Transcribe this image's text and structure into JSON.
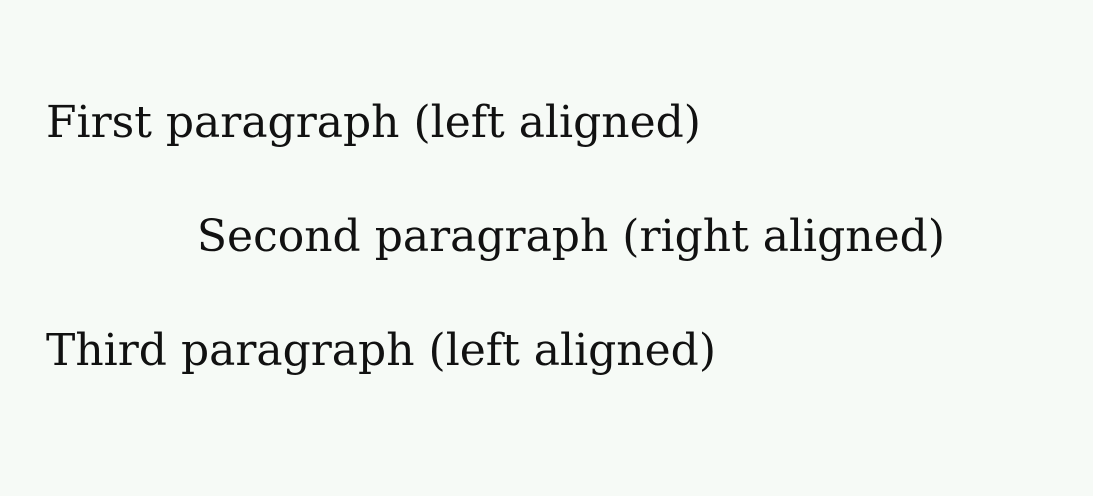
{
  "document": {
    "paragraphs": [
      {
        "text": "First paragraph (left aligned)",
        "align": "left"
      },
      {
        "text": "Second paragraph (right aligned)",
        "align": "right"
      },
      {
        "text": "Third paragraph (left aligned)",
        "align": "left"
      }
    ]
  },
  "colors": {
    "background": "#f6faf6",
    "text": "#111111"
  }
}
